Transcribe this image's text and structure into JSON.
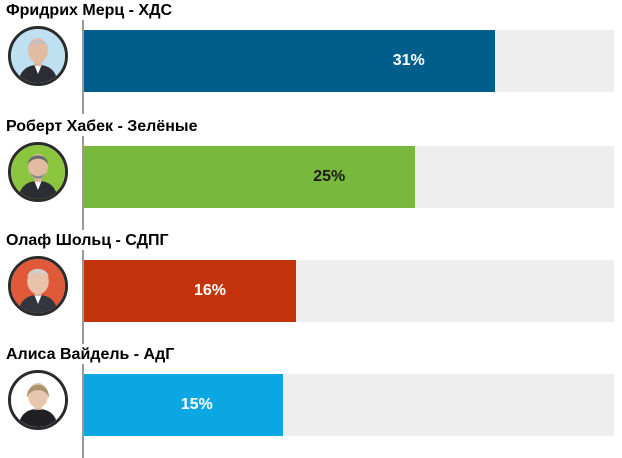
{
  "chart_data": {
    "type": "bar",
    "orientation": "horizontal",
    "xlim": [
      0,
      40
    ],
    "grid": false,
    "items": [
      {
        "name": "Фридрих Мерц - ХДС",
        "value": 31,
        "label": "31%",
        "color": "#005f8a",
        "label_color": "#ffffff",
        "avatar_bg": "#bfe0f0"
      },
      {
        "name": "Роберт Хабек - Зелёные",
        "value": 25,
        "label": "25%",
        "color": "#78b83d",
        "label_color": "#1a1a1a",
        "avatar_bg": "#8cc63f"
      },
      {
        "name": "Олаф Шольц - СДПГ",
        "value": 16,
        "label": "16%",
        "color": "#c4340c",
        "label_color": "#ffffff",
        "avatar_bg": "#e05a3a"
      },
      {
        "name": "Алиса Вайдель - АдГ",
        "value": 15,
        "label": "15%",
        "color": "#0aa7e2",
        "label_color": "#ffffff",
        "avatar_bg": "#ffffff"
      }
    ]
  }
}
